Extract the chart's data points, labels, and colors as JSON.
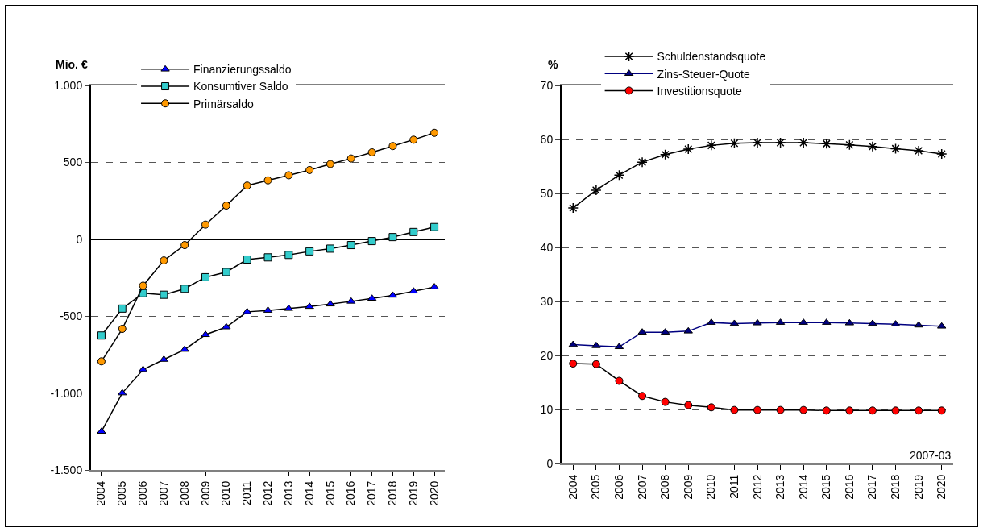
{
  "chart_data": [
    {
      "type": "line",
      "ylabel": "Mio. €",
      "categories": [
        "2004",
        "2005",
        "2006",
        "2007",
        "2008",
        "2009",
        "2010",
        "2011",
        "2012",
        "2013",
        "2014",
        "2015",
        "2016",
        "2017",
        "2018",
        "2019",
        "2020"
      ],
      "series": [
        {
          "name": "Finanzierungssaldo",
          "color": "#0000ff",
          "marker": "triangle",
          "values": [
            -1250,
            -1000,
            -848,
            -782,
            -717,
            -621,
            -571,
            -472,
            -463,
            -451,
            -438,
            -422,
            -404,
            -385,
            -365,
            -338,
            -311
          ]
        },
        {
          "name": "Konsumtiver Saldo",
          "color": "#33cccc",
          "marker": "square",
          "values": [
            -626,
            -451,
            -351,
            -361,
            -322,
            -247,
            -213,
            -132,
            -118,
            -102,
            -79,
            -61,
            -38,
            -12,
            14,
            47,
            79
          ]
        },
        {
          "name": "Primärsaldo",
          "color": "#ff9900",
          "marker": "circle",
          "values": [
            -794,
            -583,
            -302,
            -138,
            -38,
            95,
            219,
            349,
            383,
            416,
            450,
            489,
            525,
            565,
            606,
            647,
            692
          ]
        }
      ],
      "ylim": [
        -1500,
        1000
      ],
      "yticks": [
        {
          "value": -1500,
          "label": "-1.500"
        },
        {
          "value": -1000,
          "label": "-1.000"
        },
        {
          "value": -500,
          "label": "-500"
        },
        0,
        500,
        {
          "value": 1000,
          "label": "1.000"
        }
      ],
      "grid": "y",
      "legend": "top"
    },
    {
      "type": "line",
      "ylabel": "%",
      "categories": [
        "2004",
        "2005",
        "2006",
        "2007",
        "2008",
        "2009",
        "2010",
        "2011",
        "2012",
        "2013",
        "2014",
        "2015",
        "2016",
        "2017",
        "2018",
        "2019",
        "2020"
      ],
      "series": [
        {
          "name": "Schuldenstandsquote",
          "color": "#000000",
          "marker": "cross",
          "values": [
            47.3,
            50.6,
            53.4,
            55.8,
            57.2,
            58.2,
            58.9,
            59.3,
            59.4,
            59.4,
            59.4,
            59.2,
            59.0,
            58.7,
            58.3,
            57.9,
            57.3
          ]
        },
        {
          "name": "Zins-Steuer-Quote",
          "color": "#000080",
          "marker": "triangle",
          "values": [
            22.0,
            21.8,
            21.6,
            24.3,
            24.3,
            24.5,
            26.1,
            25.9,
            26.0,
            26.1,
            26.1,
            26.1,
            26.0,
            25.9,
            25.8,
            25.6,
            25.4
          ]
        },
        {
          "name": "Investitionsquote",
          "color": "#ff0000",
          "marker": "circle",
          "values": [
            18.5,
            18.4,
            15.3,
            12.5,
            11.4,
            10.8,
            10.4,
            9.9,
            9.9,
            9.9,
            9.9,
            9.8,
            9.8,
            9.8,
            9.8,
            9.8,
            9.8
          ]
        }
      ],
      "ylim": [
        0,
        70
      ],
      "yticks": [
        0,
        10,
        20,
        30,
        40,
        50,
        60,
        70
      ],
      "grid": "y",
      "legend": "top",
      "annotations": [
        "2007-03"
      ]
    }
  ]
}
